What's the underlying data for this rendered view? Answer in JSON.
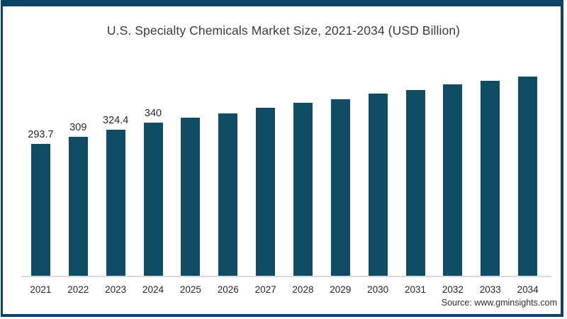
{
  "title": "U.S. Specialty Chemicals Market Size, 2021-2034 (USD Billion)",
  "source": {
    "text": "Source: www.gminsights.com"
  },
  "colors": {
    "bar": "#0e4d63",
    "frame_border": "#0d4465",
    "axis_line": "#dadada"
  },
  "chart_data": {
    "type": "bar",
    "title": "U.S. Specialty Chemicals Market Size, 2021-2034 (USD Billion)",
    "categories": [
      "2021",
      "2022",
      "2023",
      "2024",
      "2025",
      "2026",
      "2027",
      "2028",
      "2029",
      "2030",
      "2031",
      "2032",
      "2033",
      "2034"
    ],
    "values": [
      293.7,
      309,
      324.4,
      340,
      352,
      361,
      374,
      385,
      392,
      405,
      413,
      425,
      433,
      442
    ],
    "data_labels": [
      "293.7",
      "309",
      "324.4",
      "340",
      "",
      "",
      "",
      "",
      "",
      "",
      "",
      "",
      "",
      ""
    ],
    "xlabel": "",
    "ylabel": "",
    "ylim": [
      0,
      470
    ],
    "grid": false,
    "legend": "none",
    "bar_color": "#0e4d63",
    "source": "Source: www.gminsights.com"
  }
}
